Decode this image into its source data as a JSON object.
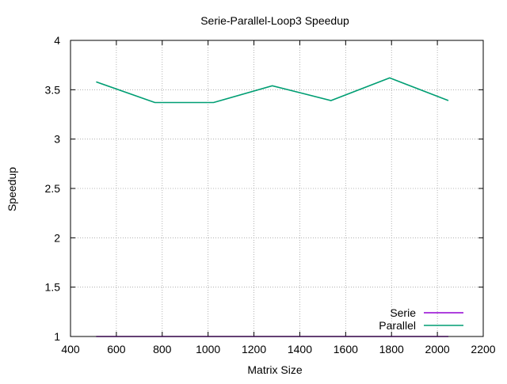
{
  "chart_data": {
    "type": "line",
    "title": "Serie-Parallel-Loop3 Speedup",
    "xlabel": "Matrix Size",
    "ylabel": "Speedup",
    "xlim": [
      400,
      2200
    ],
    "ylim": [
      1,
      4
    ],
    "x_ticks": [
      400,
      600,
      800,
      1000,
      1200,
      1400,
      1600,
      1800,
      2000,
      2200
    ],
    "y_ticks": [
      1,
      1.5,
      2,
      2.5,
      3,
      3.5,
      4
    ],
    "y_tick_labels": [
      "1",
      "1.5",
      "2",
      "2.5",
      "3",
      "3.5",
      "4"
    ],
    "grid": true,
    "legend_position": "bottom-right",
    "series": [
      {
        "name": "Serie",
        "color": "#9400d3",
        "x": [
          512,
          768,
          1024,
          1280,
          1536,
          1792,
          2048
        ],
        "y": [
          1,
          1,
          1,
          1,
          1,
          1,
          1
        ]
      },
      {
        "name": "Parallel",
        "color": "#009e73",
        "x": [
          512,
          768,
          1024,
          1280,
          1536,
          1792,
          2048
        ],
        "y": [
          3.58,
          3.37,
          3.37,
          3.54,
          3.39,
          3.62,
          3.39
        ]
      }
    ]
  }
}
